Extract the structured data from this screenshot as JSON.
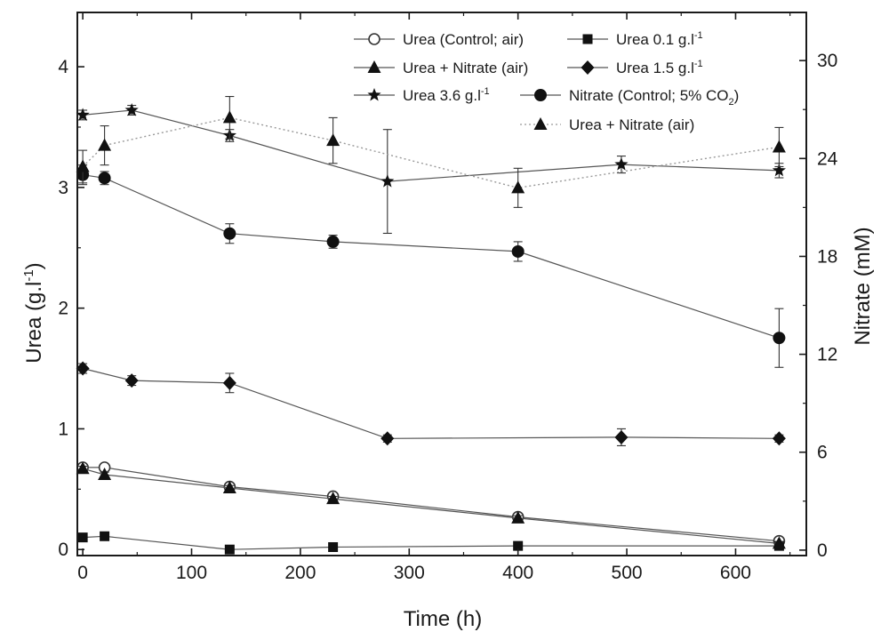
{
  "chart_data": {
    "type": "line",
    "xlabel": "Time (h)",
    "ylabel": "Urea (g.l",
    "ylabel_sup": "-1",
    "ylabel_end": ")",
    "y2label": "Nitrate (mM)",
    "xlim": [
      -5,
      665
    ],
    "ylim": [
      -0.05,
      4.45
    ],
    "y2lim": [
      -0.3333,
      32.95
    ],
    "x_ticks": [
      0,
      100,
      200,
      300,
      400,
      500,
      600
    ],
    "y_ticks": [
      0,
      1,
      2,
      3,
      4
    ],
    "y2_ticks": [
      0,
      6,
      12,
      18,
      24,
      30
    ],
    "series": [
      {
        "name": "Urea (Control; air)",
        "axis": "left",
        "marker": "open-circle",
        "line": "solid",
        "x": [
          0,
          20,
          135,
          230,
          400,
          640
        ],
        "y": [
          0.68,
          0.68,
          0.52,
          0.44,
          0.27,
          0.07
        ],
        "err": [
          0.02,
          0.02,
          0.02,
          0.02,
          0.02,
          0.01
        ]
      },
      {
        "name": "Urea 0.1 g.l",
        "sup": "-1",
        "axis": "left",
        "marker": "square",
        "line": "solid",
        "x": [
          0,
          20,
          135,
          230,
          400,
          640
        ],
        "y": [
          0.1,
          0.11,
          0.0,
          0.02,
          0.03,
          0.03
        ],
        "err": [
          0.01,
          0.01,
          0.01,
          0.01,
          0.01,
          0.01
        ]
      },
      {
        "name": "Urea + Nitrate (air)",
        "axis": "left",
        "marker": "triangle",
        "line": "solid",
        "x": [
          0,
          20,
          135,
          230,
          400,
          640
        ],
        "y": [
          0.67,
          0.62,
          0.51,
          0.42,
          0.26,
          0.05
        ],
        "err": [
          0.02,
          0.02,
          0.02,
          0.02,
          0.02,
          0.01
        ]
      },
      {
        "name": "Urea 1.5 g.l",
        "sup": "-1",
        "axis": "left",
        "marker": "diamond",
        "line": "solid",
        "x": [
          0,
          45,
          135,
          280,
          495,
          640
        ],
        "y": [
          1.5,
          1.4,
          1.38,
          0.92,
          0.93,
          0.92
        ],
        "err": [
          0.04,
          0.04,
          0.08,
          0.03,
          0.07,
          0.03
        ]
      },
      {
        "name": "Urea 3.6 g.l",
        "sup": "-1",
        "axis": "left",
        "marker": "star",
        "line": "solid",
        "x": [
          0,
          45,
          135,
          280,
          495,
          640
        ],
        "y": [
          3.6,
          3.64,
          3.43,
          3.05,
          3.19,
          3.14
        ],
        "err": [
          0.04,
          0.04,
          0.05,
          0.43,
          0.07,
          0.06
        ]
      },
      {
        "name": "Nitrate (Control; 5% CO",
        "sub": "2",
        "name_end": ")",
        "axis": "right",
        "marker": "filled-circle",
        "line": "solid",
        "x": [
          0,
          20,
          135,
          230,
          400,
          640
        ],
        "y": [
          23.0,
          22.8,
          19.4,
          18.9,
          18.3,
          13.0
        ],
        "err": [
          0.6,
          0.4,
          0.6,
          0.4,
          0.6,
          1.8
        ]
      },
      {
        "name": "Urea + Nitrate (air)",
        "axis": "right",
        "marker": "triangle",
        "line": "dotted",
        "x": [
          0,
          20,
          135,
          230,
          400,
          640
        ],
        "y": [
          23.5,
          24.8,
          26.5,
          25.1,
          22.2,
          24.7
        ],
        "err": [
          1.0,
          1.2,
          1.3,
          1.4,
          1.2,
          1.2
        ]
      }
    ]
  }
}
